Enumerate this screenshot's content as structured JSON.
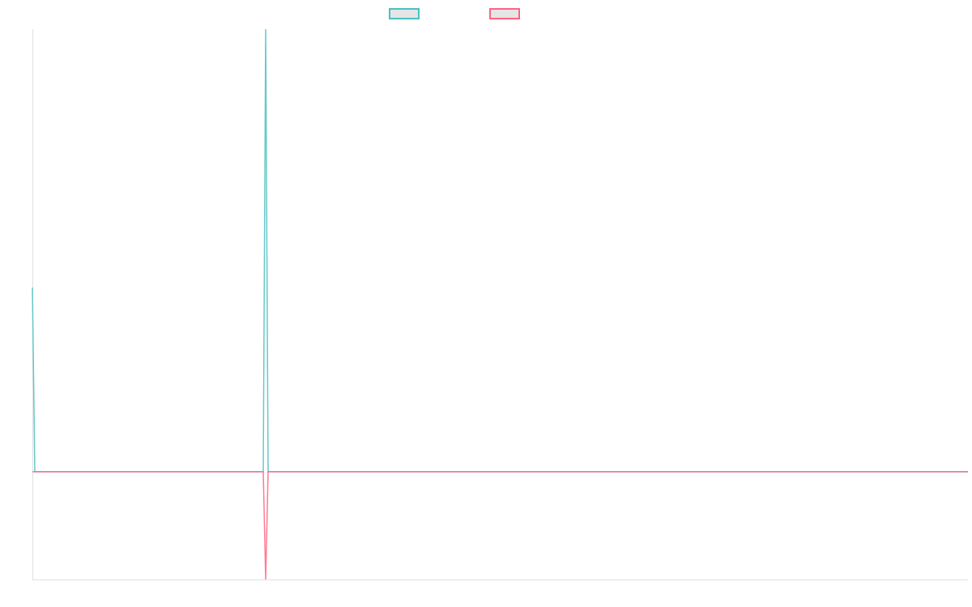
{
  "chart_data": {
    "type": "line",
    "title": "",
    "xlabel": "",
    "ylabel": "",
    "ylim": [
      -1,
      4.11
    ],
    "grid": false,
    "legend_placement": "top",
    "n_points": 386,
    "default_value": 0,
    "series": [
      {
        "color": "#4bc0c0",
        "nonzero_points": [
          [
            0,
            1.71
          ],
          [
            96,
            4.11
          ]
        ]
      },
      {
        "color": "#ff6384",
        "nonzero_points": [
          [
            96,
            -1
          ]
        ]
      }
    ]
  },
  "colors": {
    "axis": "#e0e0e0",
    "legend_fill": "#e5e5e5"
  }
}
